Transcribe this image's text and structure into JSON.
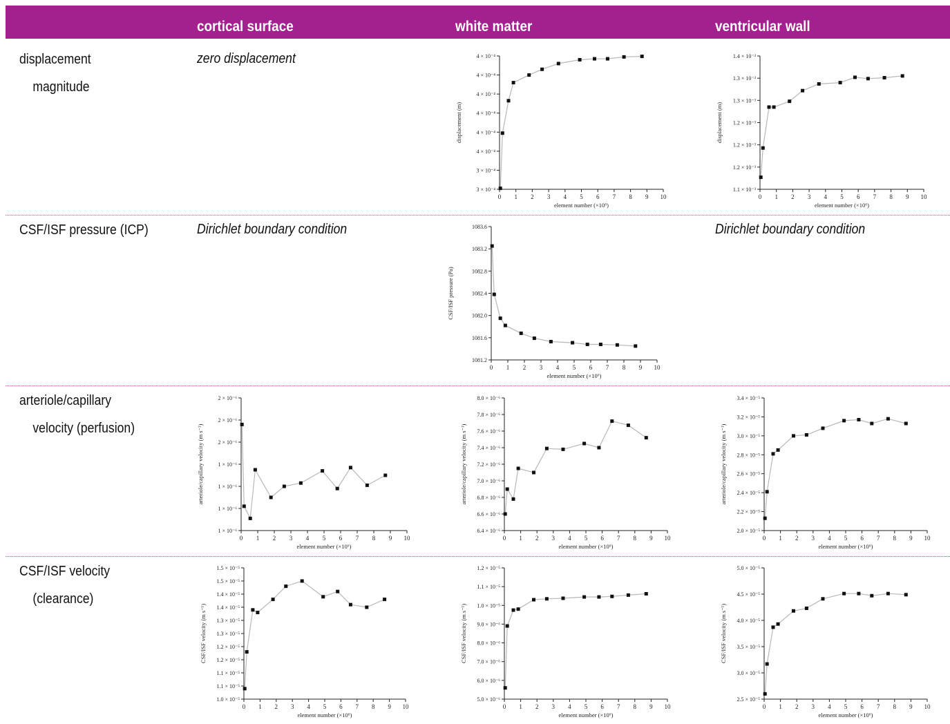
{
  "header": {
    "col1": "cortical surface",
    "col2": "white matter",
    "col3": "ventricular wall"
  },
  "rows": {
    "r1": {
      "line1": "displacement",
      "line2": "magnitude"
    },
    "r2": {
      "line1": "CSF/ISF pressure (ICP)"
    },
    "r3": {
      "line1": "arteriole/capillary",
      "line2": "velocity (perfusion)"
    },
    "r4": {
      "line1": "CSF/ISF velocity",
      "line2": "(clearance)"
    }
  },
  "notes": {
    "zero": "zero displacement",
    "dirichlet_cortical": "Dirichlet boundary condition",
    "dirichlet_ventricular": "Dirichlet boundary condition"
  },
  "chart_data": [
    {
      "id": "disp_wm",
      "type": "line",
      "xlabel": "element number (×10⁶)",
      "ylabel": "displacement (m)",
      "xlim": [
        0,
        10
      ],
      "xticks": [
        "0",
        "1",
        "2",
        "3",
        "4",
        "5",
        "6",
        "7",
        "8",
        "9",
        "10"
      ],
      "ylim": [
        0,
        7
      ],
      "yticks": [
        {
          "v": 0,
          "label": "3 × 10⁻⁴"
        },
        {
          "v": 1,
          "label": "3 × 10⁻⁴"
        },
        {
          "v": 2,
          "label": "4 × 10⁻⁴"
        },
        {
          "v": 3,
          "label": "4 × 10⁻⁴"
        },
        {
          "v": 4,
          "label": "4 × 10⁻⁴"
        },
        {
          "v": 5,
          "label": "4 × 10⁻⁴"
        },
        {
          "v": 6,
          "label": "4 × 10⁻⁴"
        },
        {
          "v": 7,
          "label": "4 × 10⁻⁴"
        }
      ],
      "x": [
        0.05,
        0.18,
        0.55,
        0.85,
        1.8,
        2.6,
        3.6,
        4.9,
        5.8,
        6.6,
        7.6,
        8.7
      ],
      "y": [
        0.05,
        2.95,
        4.65,
        5.6,
        6.0,
        6.3,
        6.6,
        6.8,
        6.85,
        6.85,
        6.95,
        6.98
      ]
    },
    {
      "id": "disp_vw",
      "type": "line",
      "xlabel": "element number (×10⁶)",
      "ylabel": "displacement (m)",
      "xlim": [
        0,
        10
      ],
      "xticks": [
        "0",
        "1",
        "2",
        "3",
        "4",
        "5",
        "6",
        "7",
        "8",
        "9",
        "10"
      ],
      "ylim": [
        1.1,
        1.4
      ],
      "yticks": [
        {
          "v": 1.1,
          "label": "1.1 × 10⁻³"
        },
        {
          "v": 1.15,
          "label": "1.2 × 10⁻³"
        },
        {
          "v": 1.2,
          "label": "1.2 × 10⁻³"
        },
        {
          "v": 1.25,
          "label": "1.2 × 10⁻³"
        },
        {
          "v": 1.3,
          "label": "1.3 × 10⁻³"
        },
        {
          "v": 1.35,
          "label": "1.3 × 10⁻³"
        },
        {
          "v": 1.4,
          "label": "1.4 × 10⁻³"
        }
      ],
      "x": [
        0.05,
        0.18,
        0.55,
        0.85,
        1.8,
        2.6,
        3.6,
        4.9,
        5.8,
        6.6,
        7.6,
        8.7
      ],
      "y": [
        1.127,
        1.193,
        1.285,
        1.285,
        1.298,
        1.322,
        1.337,
        1.34,
        1.352,
        1.349,
        1.351,
        1.355
      ]
    },
    {
      "id": "pres_wm",
      "type": "line",
      "xlabel": "element number (×10⁶)",
      "ylabel": "CSF/ISF pressure (Pa)",
      "xlim": [
        0,
        10
      ],
      "xticks": [
        "0",
        "1",
        "2",
        "3",
        "4",
        "5",
        "6",
        "7",
        "8",
        "9",
        "10"
      ],
      "ylim": [
        1081.2,
        1083.6
      ],
      "yticks": [
        {
          "v": 1081.2,
          "label": "1081.2"
        },
        {
          "v": 1081.6,
          "label": "1081.6"
        },
        {
          "v": 1082.0,
          "label": "1082.0"
        },
        {
          "v": 1082.4,
          "label": "1082.4"
        },
        {
          "v": 1082.8,
          "label": "1082.8"
        },
        {
          "v": 1083.2,
          "label": "1083.2"
        },
        {
          "v": 1083.6,
          "label": "1083.6"
        }
      ],
      "x": [
        0.05,
        0.18,
        0.55,
        0.85,
        1.8,
        2.6,
        3.6,
        4.9,
        5.8,
        6.6,
        7.6,
        8.7
      ],
      "y": [
        1083.25,
        1082.38,
        1081.95,
        1081.82,
        1081.68,
        1081.59,
        1081.53,
        1081.51,
        1081.48,
        1081.48,
        1081.47,
        1081.45
      ]
    },
    {
      "id": "perf_cs",
      "type": "line",
      "xlabel": "element number (×10⁶)",
      "ylabel": "arteriole/capillary velocity (m s⁻¹)",
      "xlim": [
        0,
        10
      ],
      "xticks": [
        "0",
        "1",
        "2",
        "3",
        "4",
        "5",
        "6",
        "7",
        "8",
        "9",
        "10"
      ],
      "ylim": [
        1,
        7
      ],
      "yticks": [
        {
          "v": 1,
          "label": "1 × 10⁻⁶"
        },
        {
          "v": 2,
          "label": "1 × 10⁻⁶"
        },
        {
          "v": 3,
          "label": "1 × 10⁻⁶"
        },
        {
          "v": 4,
          "label": "1 × 10⁻⁶"
        },
        {
          "v": 5,
          "label": "2 × 10⁻⁶"
        },
        {
          "v": 6,
          "label": "2 × 10⁻⁶"
        },
        {
          "v": 7,
          "label": "2 × 10⁻⁶"
        }
      ],
      "x": [
        0.05,
        0.18,
        0.55,
        0.85,
        1.8,
        2.6,
        3.6,
        4.9,
        5.8,
        6.6,
        7.6,
        8.7
      ],
      "y": [
        5.8,
        2.1,
        1.55,
        3.75,
        2.5,
        3.0,
        3.15,
        3.7,
        2.9,
        3.85,
        3.05,
        3.5
      ]
    },
    {
      "id": "perf_wm",
      "type": "line",
      "xlabel": "element number (×10⁶)",
      "ylabel": "arteriole/capillary velocity (m s⁻¹)",
      "xlim": [
        0,
        10
      ],
      "xticks": [
        "0",
        "1",
        "2",
        "3",
        "4",
        "5",
        "6",
        "7",
        "8",
        "9",
        "10"
      ],
      "ylim": [
        6.4,
        8.0
      ],
      "yticks": [
        {
          "v": 6.4,
          "label": "6.4 × 10⁻⁶"
        },
        {
          "v": 6.6,
          "label": "6.6 × 10⁻⁶"
        },
        {
          "v": 6.8,
          "label": "6.8 × 10⁻⁶"
        },
        {
          "v": 7.0,
          "label": "7.0 × 10⁻⁶"
        },
        {
          "v": 7.2,
          "label": "7.2 × 10⁻⁶"
        },
        {
          "v": 7.4,
          "label": "7.4 × 10⁻⁶"
        },
        {
          "v": 7.6,
          "label": "7.6 × 10⁻⁶"
        },
        {
          "v": 7.8,
          "label": "7.8 × 10⁻⁶"
        },
        {
          "v": 8.0,
          "label": "8.0 × 10⁻⁶"
        }
      ],
      "x": [
        0.05,
        0.18,
        0.55,
        0.85,
        1.8,
        2.6,
        3.6,
        4.9,
        5.8,
        6.6,
        7.6,
        8.7
      ],
      "y": [
        6.6,
        6.9,
        6.78,
        7.15,
        7.1,
        7.39,
        7.38,
        7.45,
        7.4,
        7.72,
        7.67,
        7.52
      ]
    },
    {
      "id": "perf_vw",
      "type": "line",
      "xlabel": "element number (×10⁶)",
      "ylabel": "arteriole/capillary velocity (m s⁻¹)",
      "xlim": [
        0,
        10
      ],
      "xticks": [
        "0",
        "1",
        "2",
        "3",
        "4",
        "5",
        "6",
        "7",
        "8",
        "9",
        "10"
      ],
      "ylim": [
        2.0,
        3.4
      ],
      "yticks": [
        {
          "v": 2.0,
          "label": "2.0 × 10⁻⁵"
        },
        {
          "v": 2.2,
          "label": "2.2 × 10⁻⁵"
        },
        {
          "v": 2.4,
          "label": "2.4 × 10⁻⁵"
        },
        {
          "v": 2.6,
          "label": "2.6 × 10⁻⁵"
        },
        {
          "v": 2.8,
          "label": "2.8 × 10⁻⁵"
        },
        {
          "v": 3.0,
          "label": "3.0 × 10⁻⁵"
        },
        {
          "v": 3.2,
          "label": "3.2 × 10⁻⁵"
        },
        {
          "v": 3.4,
          "label": "3.4 × 10⁻⁵"
        }
      ],
      "x": [
        0.05,
        0.18,
        0.55,
        0.85,
        1.8,
        2.6,
        3.6,
        4.9,
        5.8,
        6.6,
        7.6,
        8.7
      ],
      "y": [
        2.13,
        2.41,
        2.81,
        2.85,
        3.0,
        3.01,
        3.08,
        3.16,
        3.17,
        3.13,
        3.18,
        3.13
      ]
    },
    {
      "id": "clear_cs",
      "type": "line",
      "xlabel": "element number (×10⁶)",
      "ylabel": "CSF/ISF velocity (m s⁻¹)",
      "xlim": [
        0,
        10
      ],
      "xticks": [
        "0",
        "1",
        "2",
        "3",
        "4",
        "5",
        "6",
        "7",
        "8",
        "9",
        "10"
      ],
      "ylim": [
        1.0,
        1.5
      ],
      "yticks": [
        {
          "v": 1.0,
          "label": "1.0 × 10⁻⁵"
        },
        {
          "v": 1.05,
          "label": "1.1 × 10⁻⁵"
        },
        {
          "v": 1.1,
          "label": "1.1 × 10⁻⁵"
        },
        {
          "v": 1.15,
          "label": "1.2 × 10⁻⁵"
        },
        {
          "v": 1.2,
          "label": "1.2 × 10⁻⁵"
        },
        {
          "v": 1.25,
          "label": "1.3 × 10⁻⁵"
        },
        {
          "v": 1.3,
          "label": "1.3 × 10⁻⁵"
        },
        {
          "v": 1.35,
          "label": "1.4 × 10⁻⁵"
        },
        {
          "v": 1.4,
          "label": "1.4 × 10⁻⁵"
        },
        {
          "v": 1.45,
          "label": "1.5 × 10⁻⁵"
        },
        {
          "v": 1.5,
          "label": "1.5 × 10⁻⁵"
        }
      ],
      "x": [
        0.05,
        0.18,
        0.55,
        0.85,
        1.8,
        2.6,
        3.6,
        4.9,
        5.8,
        6.6,
        7.6,
        8.7
      ],
      "y": [
        1.04,
        1.18,
        1.34,
        1.33,
        1.38,
        1.43,
        1.45,
        1.39,
        1.41,
        1.36,
        1.35,
        1.38
      ]
    },
    {
      "id": "clear_wm",
      "type": "line",
      "xlabel": "element number (×10⁶)",
      "ylabel": "CSF/ISF velocity (m s⁻¹)",
      "xlim": [
        0,
        10
      ],
      "xticks": [
        "0",
        "1",
        "2",
        "3",
        "4",
        "5",
        "6",
        "7",
        "8",
        "9",
        "10"
      ],
      "ylim": [
        5.0,
        12.0
      ],
      "yticks": [
        {
          "v": 5,
          "label": "5.0 × 10⁻⁶"
        },
        {
          "v": 6,
          "label": "6.0 × 10⁻⁶"
        },
        {
          "v": 7,
          "label": "7.0 × 10⁻⁶"
        },
        {
          "v": 8,
          "label": "8.0 × 10⁻⁶"
        },
        {
          "v": 9,
          "label": "9.0 × 10⁻⁶"
        },
        {
          "v": 10,
          "label": "1.0 × 10⁻⁵"
        },
        {
          "v": 11,
          "label": "1.1 × 10⁻⁵"
        },
        {
          "v": 12,
          "label": "1.2 × 10⁻⁵"
        }
      ],
      "x": [
        0.05,
        0.18,
        0.55,
        0.85,
        1.8,
        2.6,
        3.6,
        4.9,
        5.8,
        6.6,
        7.6,
        8.7
      ],
      "y": [
        5.6,
        8.9,
        9.75,
        9.8,
        10.3,
        10.35,
        10.38,
        10.45,
        10.45,
        10.48,
        10.55,
        10.62
      ]
    },
    {
      "id": "clear_vw",
      "type": "line",
      "xlabel": "element number (×10⁶)",
      "ylabel": "CSF/ISF velocity (m s⁻¹)",
      "xlim": [
        0,
        10
      ],
      "xticks": [
        "0",
        "1",
        "2",
        "3",
        "4",
        "5",
        "6",
        "7",
        "8",
        "9",
        "10"
      ],
      "ylim": [
        2.5,
        5.0
      ],
      "yticks": [
        {
          "v": 2.5,
          "label": "2.5 × 10⁻⁵"
        },
        {
          "v": 3.0,
          "label": "3.0 × 10⁻⁵"
        },
        {
          "v": 3.5,
          "label": "3.5 × 10⁻⁵"
        },
        {
          "v": 4.0,
          "label": "4.0 × 10⁻⁵"
        },
        {
          "v": 4.5,
          "label": "4.5 × 10⁻⁵"
        },
        {
          "v": 5.0,
          "label": "5.0 × 10⁻⁵"
        }
      ],
      "x": [
        0.05,
        0.18,
        0.55,
        0.85,
        1.8,
        2.6,
        3.6,
        4.9,
        5.8,
        6.6,
        7.6,
        8.7
      ],
      "y": [
        2.6,
        3.17,
        3.87,
        3.93,
        4.18,
        4.23,
        4.41,
        4.51,
        4.51,
        4.47,
        4.51,
        4.49
      ]
    }
  ]
}
